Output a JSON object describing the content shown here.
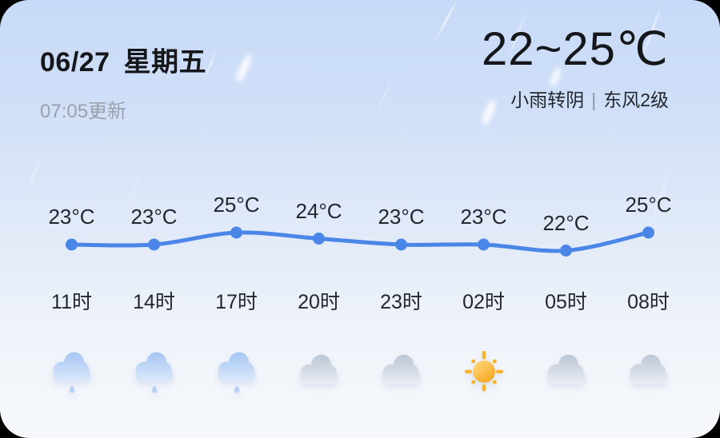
{
  "header": {
    "date": "06/27",
    "weekday": "星期五",
    "updated": "07:05更新",
    "temp_range": "22~25℃",
    "condition": "小雨转阴",
    "separator": "|",
    "wind": "东风2级"
  },
  "chart_data": {
    "type": "line",
    "x": [
      "11时",
      "14时",
      "17时",
      "20时",
      "23时",
      "02时",
      "05时",
      "08时"
    ],
    "series": [
      {
        "name": "temperature",
        "unit": "°C",
        "values": [
          23,
          23,
          25,
          24,
          23,
          23,
          22,
          25
        ]
      }
    ],
    "point_labels": [
      "23°C",
      "23°C",
      "25°C",
      "24°C",
      "23°C",
      "23°C",
      "22°C",
      "25°C"
    ],
    "icons": [
      "light-rain-icon",
      "light-rain-icon",
      "light-rain-icon",
      "overcast-icon",
      "overcast-icon",
      "sunny-icon",
      "overcast-icon",
      "overcast-icon"
    ],
    "ylim": [
      21,
      26
    ],
    "grid": false,
    "legend": false,
    "line_color": "#4a86e8"
  },
  "colors": {
    "accent_line": "#4a86e8",
    "card_top": "#c7daf7",
    "card_bottom": "#f6f8fc",
    "text_primary": "#15171b",
    "text_muted": "#9aa1ab"
  }
}
